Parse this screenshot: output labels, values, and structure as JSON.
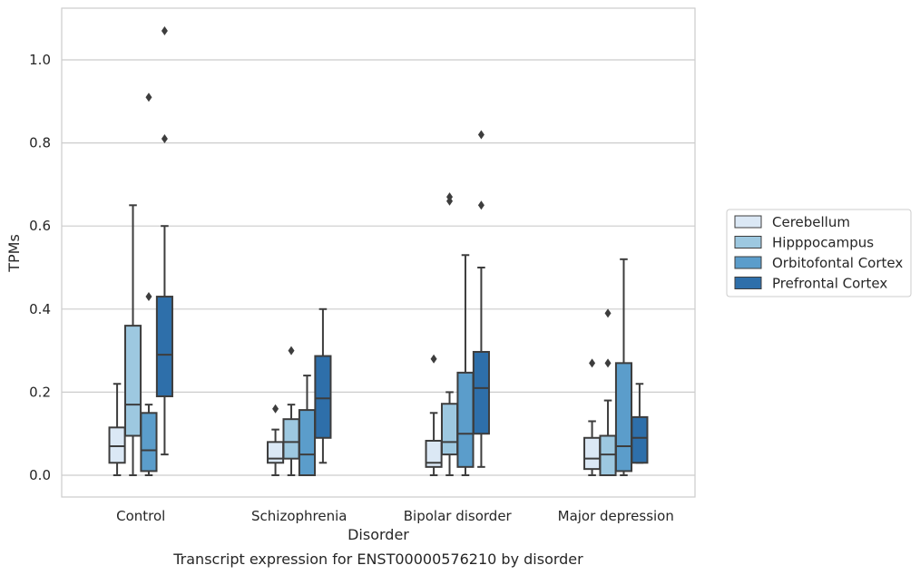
{
  "chart_data": {
    "type": "box",
    "title": "",
    "caption": "Transcript expression for ENST00000576210 by disorder",
    "xlabel": "Disorder",
    "ylabel": "TPMs",
    "ylim": [
      -0.05,
      1.13
    ],
    "yticks": [
      "0.0",
      "0.2",
      "0.4",
      "0.6",
      "0.8",
      "1.0"
    ],
    "ytick_values": [
      0.0,
      0.2,
      0.4,
      0.6,
      0.8,
      1.0
    ],
    "grid": "horizontal",
    "legend_position": "right",
    "categories": [
      "Control",
      "Schizophrenia",
      "Bipolar disorder",
      "Major depression"
    ],
    "series": [
      {
        "name": "Cerebellum",
        "color": "#dbe8f5",
        "boxes": [
          {
            "whisker_low": 0.0,
            "q1": 0.03,
            "median": 0.07,
            "q3": 0.115,
            "whisker_high": 0.22,
            "outliers": []
          },
          {
            "whisker_low": 0.0,
            "q1": 0.03,
            "median": 0.04,
            "q3": 0.08,
            "whisker_high": 0.11,
            "outliers": [
              0.16
            ]
          },
          {
            "whisker_low": 0.0,
            "q1": 0.02,
            "median": 0.03,
            "q3": 0.083,
            "whisker_high": 0.15,
            "outliers": [
              0.28
            ]
          },
          {
            "whisker_low": 0.0,
            "q1": 0.015,
            "median": 0.04,
            "q3": 0.09,
            "whisker_high": 0.13,
            "outliers": [
              0.27
            ]
          }
        ]
      },
      {
        "name": "Hipppocampus",
        "color": "#9dc8e0",
        "boxes": [
          {
            "whisker_low": 0.0,
            "q1": 0.095,
            "median": 0.17,
            "q3": 0.36,
            "whisker_high": 0.65,
            "outliers": []
          },
          {
            "whisker_low": 0.0,
            "q1": 0.04,
            "median": 0.08,
            "q3": 0.135,
            "whisker_high": 0.17,
            "outliers": [
              0.3
            ]
          },
          {
            "whisker_low": 0.0,
            "q1": 0.05,
            "median": 0.08,
            "q3": 0.172,
            "whisker_high": 0.2,
            "outliers": [
              0.66,
              0.67
            ]
          },
          {
            "whisker_low": 0.0,
            "q1": 0.0,
            "median": 0.05,
            "q3": 0.095,
            "whisker_high": 0.18,
            "outliers": [
              0.27,
              0.39
            ]
          }
        ]
      },
      {
        "name": "Orbitofontal Cortex",
        "color": "#5b9dcb",
        "boxes": [
          {
            "whisker_low": 0.0,
            "q1": 0.01,
            "median": 0.06,
            "q3": 0.15,
            "whisker_high": 0.17,
            "outliers": [
              0.43,
              0.91
            ]
          },
          {
            "whisker_low": 0.0,
            "q1": 0.0,
            "median": 0.05,
            "q3": 0.157,
            "whisker_high": 0.24,
            "outliers": []
          },
          {
            "whisker_low": 0.0,
            "q1": 0.02,
            "median": 0.1,
            "q3": 0.247,
            "whisker_high": 0.53,
            "outliers": []
          },
          {
            "whisker_low": 0.0,
            "q1": 0.01,
            "median": 0.07,
            "q3": 0.27,
            "whisker_high": 0.52,
            "outliers": []
          }
        ]
      },
      {
        "name": "Prefrontal Cortex",
        "color": "#2e6faa",
        "boxes": [
          {
            "whisker_low": 0.05,
            "q1": 0.19,
            "median": 0.29,
            "q3": 0.43,
            "whisker_high": 0.6,
            "outliers": [
              0.81,
              1.07
            ]
          },
          {
            "whisker_low": 0.03,
            "q1": 0.09,
            "median": 0.185,
            "q3": 0.287,
            "whisker_high": 0.4,
            "outliers": []
          },
          {
            "whisker_low": 0.02,
            "q1": 0.1,
            "median": 0.21,
            "q3": 0.297,
            "whisker_high": 0.5,
            "outliers": [
              0.65,
              0.82
            ]
          },
          {
            "whisker_low": 0.03,
            "q1": 0.03,
            "median": 0.09,
            "q3": 0.14,
            "whisker_high": 0.22,
            "outliers": []
          }
        ]
      }
    ]
  }
}
